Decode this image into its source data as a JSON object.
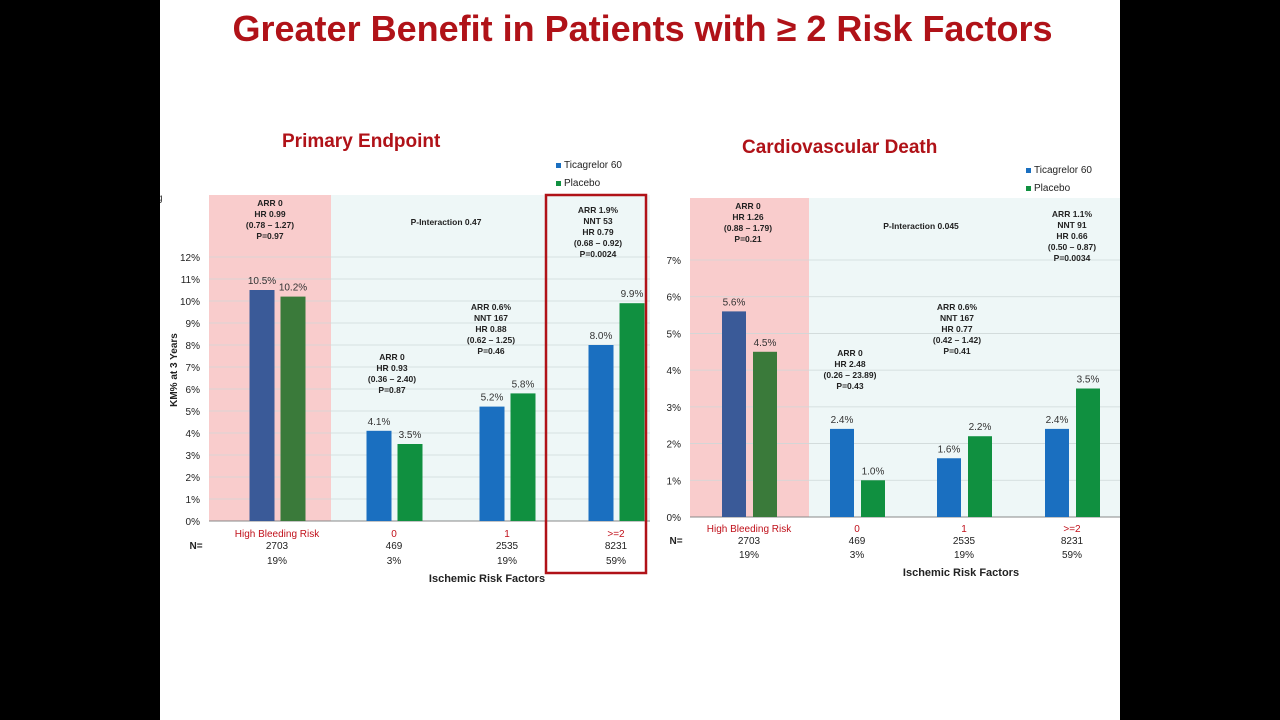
{
  "slide": {
    "title": "Greater Benefit in Patients with ≥ 2 Risk Factors",
    "clipped_fragment": "g",
    "colors": {
      "title_red": "#b01218",
      "ticagrelor": "#1a6fc0",
      "placebo": "#109040",
      "ticagrelor_hbr": "#3a5a98",
      "placebo_hbr": "#3a7a3a",
      "hbr_background": "#f9cccc",
      "ischemic_background": "#eef7f7",
      "highlight_border": "#b01218",
      "category_red": "#c0101a"
    }
  },
  "chart_data": [
    {
      "type": "bar",
      "title": "Primary Endpoint",
      "ylabel": "KM% at 3 Years",
      "xlabel": "Ischemic Risk Factors",
      "ylim": [
        0,
        12
      ],
      "yticks": [
        "0%",
        "1%",
        "2%",
        "3%",
        "4%",
        "5%",
        "6%",
        "7%",
        "8%",
        "9%",
        "10%",
        "11%",
        "12%"
      ],
      "categories": [
        "High Bleeding Risk",
        "0",
        "1",
        ">=2"
      ],
      "n_label": "N=",
      "n_values": [
        "2703",
        "469",
        "2535",
        "8231"
      ],
      "pct_values": [
        "19%",
        "3%",
        "19%",
        "59%"
      ],
      "legend": [
        "Ticagrelor 60",
        "Placebo"
      ],
      "series": [
        {
          "name": "Ticagrelor 60",
          "values": [
            10.5,
            4.1,
            5.2,
            8.0
          ],
          "labels": [
            "10.5%",
            "4.1%",
            "5.2%",
            "8.0%"
          ]
        },
        {
          "name": "Placebo",
          "values": [
            10.2,
            3.5,
            5.8,
            9.9
          ],
          "labels": [
            "10.2%",
            "3.5%",
            "5.8%",
            "9.9%"
          ]
        }
      ],
      "p_interaction": "P-Interaction 0.47",
      "annotations": [
        [
          "ARR 0",
          "HR 0.99",
          "(0.78 – 1.27)",
          "P=0.97"
        ],
        [
          "ARR 0",
          "HR 0.93",
          "(0.36 – 2.40)",
          "P=0.87"
        ],
        [
          "ARR 0.6%",
          "NNT 167",
          "HR 0.88",
          "(0.62 – 1.25)",
          "P=0.46"
        ],
        [
          "ARR 1.9%",
          "NNT 53",
          "HR 0.79",
          "(0.68 – 0.92)",
          "P=0.0024"
        ]
      ],
      "highlight_category": ">=2"
    },
    {
      "type": "bar",
      "title": "Cardiovascular Death",
      "xlabel": "Ischemic Risk Factors",
      "ylim": [
        0,
        7
      ],
      "yticks": [
        "0%",
        "1%",
        "2%",
        "3%",
        "4%",
        "5%",
        "6%",
        "7%"
      ],
      "categories": [
        "High Bleeding Risk",
        "0",
        "1",
        ">=2"
      ],
      "n_label": "N=",
      "n_values": [
        "2703",
        "469",
        "2535",
        "8231"
      ],
      "pct_values": [
        "19%",
        "3%",
        "19%",
        "59%"
      ],
      "legend": [
        "Ticagrelor 60",
        "Placebo"
      ],
      "series": [
        {
          "name": "Ticagrelor 60",
          "values": [
            5.6,
            2.4,
            1.6,
            2.4
          ],
          "labels": [
            "5.6%",
            "2.4%",
            "1.6%",
            "2.4%"
          ]
        },
        {
          "name": "Placebo",
          "values": [
            4.5,
            1.0,
            2.2,
            3.5
          ],
          "labels": [
            "4.5%",
            "1.0%",
            "2.2%",
            "3.5%"
          ]
        }
      ],
      "p_interaction": "P-Interaction 0.045",
      "annotations": [
        [
          "ARR 0",
          "HR 1.26",
          "(0.88 – 1.79)",
          "P=0.21"
        ],
        [
          "ARR 0",
          "HR 2.48",
          "(0.26 – 23.89)",
          "P=0.43"
        ],
        [
          "ARR 0.6%",
          "NNT 167",
          "HR 0.77",
          "(0.42 – 1.42)",
          "P=0.41"
        ],
        [
          "ARR 1.1%",
          "NNT 91",
          "HR 0.66",
          "(0.50 – 0.87)",
          "P=0.0034"
        ]
      ]
    }
  ]
}
